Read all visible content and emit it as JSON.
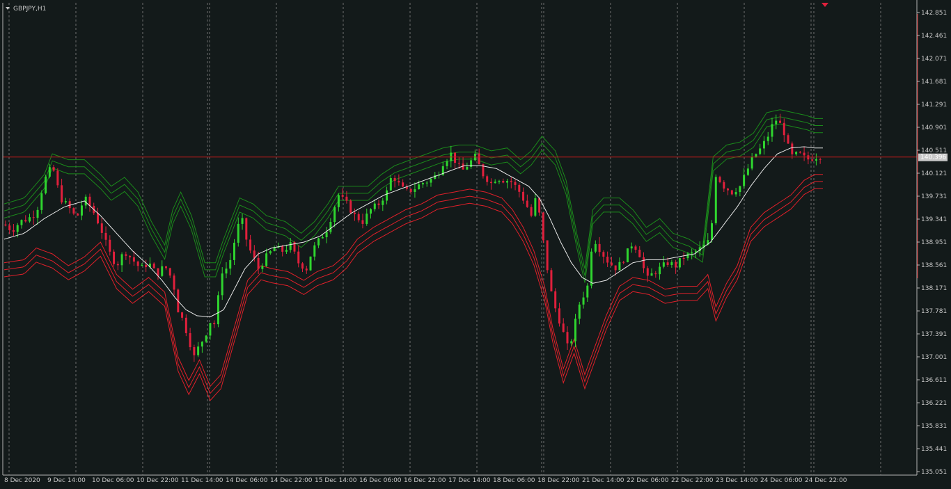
{
  "window": {
    "symbol_label": "GBPJPY,H1"
  },
  "colors": {
    "background": "#131a1a",
    "grid": "#8a8a8a",
    "axis": "#b4b4b4",
    "bull_candle": "#2fd52f",
    "bear_candle": "#e0203c",
    "ma_line": "#e8e8e8",
    "upper_band": "#1b8a1b",
    "lower_band": "#e0202a",
    "current_price_line": "#c41a1a",
    "price_tag_bg": "#c8c8c8",
    "price_tag_fg": "#ffffff"
  },
  "chart_data": {
    "type": "candlestick",
    "y_axis": {
      "min": 135.031,
      "max": 142.851,
      "tick_labels": [
        "142.851",
        "142.461",
        "142.071",
        "141.681",
        "141.291",
        "140.901",
        "140.511",
        "140.121",
        "139.731",
        "139.341",
        "138.951",
        "138.561",
        "138.171",
        "137.781",
        "137.391",
        "137.001",
        "136.611",
        "136.221",
        "135.831",
        "135.441",
        "135.051"
      ]
    },
    "x_axis": {
      "tick_labels": [
        "8 Dec 2020",
        "9 Dec 14:00",
        "10 Dec 06:00",
        "10 Dec 22:00",
        "11 Dec 14:00",
        "14 Dec 06:00",
        "14 Dec 22:00",
        "15 Dec 14:00",
        "16 Dec 06:00",
        "16 Dec 22:00",
        "17 Dec 14:00",
        "18 Dec 06:00",
        "18 Dec 22:00",
        "21 Dec 14:00",
        "22 Dec 06:00",
        "22 Dec 22:00",
        "23 Dec 14:00",
        "24 Dec 06:00",
        "24 Dec 22:00"
      ]
    },
    "current_price": 140.396,
    "current_price_label": "140.396",
    "grid": true,
    "series": {
      "close_path": [
        [
          0,
          139.25
        ],
        [
          6,
          139.15
        ],
        [
          12,
          139.3
        ],
        [
          18,
          139.35
        ],
        [
          24,
          139.45
        ],
        [
          30,
          140.0
        ],
        [
          36,
          140.25
        ],
        [
          42,
          139.7
        ],
        [
          48,
          139.55
        ],
        [
          54,
          139.35
        ],
        [
          60,
          139.7
        ],
        [
          66,
          139.5
        ],
        [
          72,
          139.2
        ],
        [
          78,
          138.8
        ],
        [
          84,
          138.55
        ],
        [
          90,
          138.8
        ],
        [
          96,
          138.65
        ],
        [
          102,
          138.5
        ],
        [
          108,
          138.6
        ],
        [
          114,
          138.4
        ],
        [
          120,
          138.55
        ],
        [
          126,
          138.3
        ],
        [
          130,
          137.8
        ],
        [
          134,
          137.6
        ],
        [
          138,
          137.3
        ],
        [
          142,
          137.0
        ],
        [
          146,
          137.2
        ],
        [
          150,
          137.35
        ],
        [
          154,
          137.6
        ],
        [
          158,
          137.55
        ],
        [
          162,
          138.45
        ],
        [
          166,
          138.5
        ],
        [
          170,
          138.7
        ],
        [
          174,
          139.2
        ],
        [
          178,
          139.3
        ],
        [
          182,
          138.9
        ],
        [
          186,
          138.7
        ],
        [
          190,
          138.5
        ],
        [
          196,
          138.7
        ],
        [
          202,
          138.85
        ],
        [
          208,
          138.8
        ],
        [
          214,
          138.9
        ],
        [
          220,
          138.6
        ],
        [
          226,
          138.5
        ],
        [
          230,
          138.8
        ],
        [
          236,
          139.0
        ],
        [
          242,
          139.2
        ],
        [
          246,
          139.5
        ],
        [
          250,
          139.75
        ],
        [
          256,
          139.6
        ],
        [
          262,
          139.4
        ],
        [
          268,
          139.3
        ],
        [
          274,
          139.5
        ],
        [
          280,
          139.6
        ],
        [
          286,
          139.8
        ],
        [
          290,
          140.1
        ],
        [
          296,
          139.9
        ],
        [
          300,
          139.8
        ],
        [
          306,
          139.85
        ],
        [
          312,
          139.95
        ],
        [
          318,
          140.0
        ],
        [
          324,
          140.1
        ],
        [
          328,
          140.3
        ],
        [
          334,
          140.45
        ],
        [
          338,
          140.3
        ],
        [
          342,
          140.15
        ],
        [
          348,
          140.3
        ],
        [
          352,
          140.4
        ],
        [
          358,
          140.1
        ],
        [
          364,
          139.95
        ],
        [
          368,
          140.05
        ],
        [
          374,
          140.0
        ],
        [
          378,
          140.0
        ],
        [
          384,
          139.85
        ],
        [
          390,
          139.6
        ],
        [
          394,
          139.4
        ],
        [
          398,
          139.75
        ],
        [
          402,
          139.1
        ],
        [
          406,
          138.5
        ],
        [
          410,
          137.95
        ],
        [
          414,
          137.7
        ],
        [
          418,
          137.4
        ],
        [
          422,
          137.1
        ],
        [
          426,
          137.5
        ],
        [
          430,
          137.9
        ],
        [
          436,
          138.2
        ],
        [
          440,
          139.05
        ],
        [
          446,
          138.8
        ],
        [
          452,
          138.6
        ],
        [
          458,
          138.5
        ],
        [
          464,
          138.7
        ],
        [
          470,
          138.95
        ],
        [
          476,
          138.7
        ],
        [
          480,
          138.3
        ],
        [
          484,
          138.4
        ],
        [
          490,
          138.5
        ],
        [
          496,
          138.6
        ],
        [
          502,
          138.55
        ],
        [
          508,
          138.7
        ],
        [
          514,
          138.75
        ],
        [
          518,
          138.8
        ],
        [
          524,
          138.9
        ],
        [
          528,
          139.0
        ],
        [
          532,
          140.1
        ],
        [
          538,
          139.9
        ],
        [
          544,
          139.8
        ],
        [
          550,
          139.9
        ],
        [
          556,
          140.2
        ],
        [
          560,
          140.4
        ],
        [
          566,
          140.55
        ],
        [
          572,
          140.8
        ],
        [
          576,
          141.05
        ],
        [
          582,
          140.9
        ],
        [
          588,
          140.4
        ],
        [
          594,
          140.45
        ],
        [
          600,
          140.35
        ],
        [
          606,
          140.4
        ],
        [
          612,
          140.42
        ]
      ],
      "ma_path": [
        [
          0,
          139.0
        ],
        [
          15,
          139.1
        ],
        [
          30,
          139.35
        ],
        [
          45,
          139.55
        ],
        [
          60,
          139.65
        ],
        [
          72,
          139.4
        ],
        [
          84,
          139.1
        ],
        [
          96,
          138.8
        ],
        [
          108,
          138.55
        ],
        [
          118,
          138.3
        ],
        [
          128,
          138.0
        ],
        [
          136,
          137.8
        ],
        [
          144,
          137.7
        ],
        [
          154,
          137.68
        ],
        [
          164,
          137.8
        ],
        [
          172,
          138.15
        ],
        [
          180,
          138.5
        ],
        [
          190,
          138.75
        ],
        [
          200,
          138.85
        ],
        [
          212,
          138.9
        ],
        [
          224,
          138.95
        ],
        [
          236,
          139.05
        ],
        [
          248,
          139.25
        ],
        [
          260,
          139.45
        ],
        [
          272,
          139.6
        ],
        [
          284,
          139.75
        ],
        [
          296,
          139.85
        ],
        [
          308,
          139.95
        ],
        [
          320,
          140.05
        ],
        [
          332,
          140.15
        ],
        [
          344,
          140.25
        ],
        [
          356,
          140.25
        ],
        [
          368,
          140.2
        ],
        [
          380,
          140.05
        ],
        [
          392,
          139.9
        ],
        [
          400,
          139.7
        ],
        [
          408,
          139.35
        ],
        [
          416,
          138.95
        ],
        [
          424,
          138.6
        ],
        [
          432,
          138.35
        ],
        [
          440,
          138.25
        ],
        [
          450,
          138.3
        ],
        [
          460,
          138.45
        ],
        [
          470,
          138.6
        ],
        [
          480,
          138.65
        ],
        [
          492,
          138.65
        ],
        [
          504,
          138.7
        ],
        [
          516,
          138.75
        ],
        [
          528,
          138.95
        ],
        [
          538,
          139.25
        ],
        [
          548,
          139.55
        ],
        [
          558,
          139.9
        ],
        [
          568,
          140.2
        ],
        [
          578,
          140.45
        ],
        [
          588,
          140.55
        ],
        [
          598,
          140.57
        ],
        [
          606,
          140.55
        ]
      ],
      "upper_band_path": [
        [
          0,
          139.6
        ],
        [
          15,
          139.7
        ],
        [
          30,
          140.1
        ],
        [
          36,
          140.45
        ],
        [
          48,
          140.35
        ],
        [
          60,
          140.35
        ],
        [
          72,
          140.1
        ],
        [
          80,
          139.9
        ],
        [
          90,
          140.05
        ],
        [
          100,
          139.8
        ],
        [
          110,
          139.3
        ],
        [
          120,
          138.9
        ],
        [
          126,
          139.5
        ],
        [
          132,
          139.8
        ],
        [
          140,
          139.4
        ],
        [
          150,
          138.6
        ],
        [
          158,
          138.6
        ],
        [
          164,
          139.0
        ],
        [
          176,
          139.7
        ],
        [
          186,
          139.6
        ],
        [
          196,
          139.4
        ],
        [
          210,
          139.3
        ],
        [
          222,
          139.1
        ],
        [
          232,
          139.3
        ],
        [
          242,
          139.6
        ],
        [
          250,
          139.9
        ],
        [
          260,
          139.9
        ],
        [
          272,
          139.9
        ],
        [
          282,
          140.1
        ],
        [
          292,
          140.25
        ],
        [
          304,
          140.35
        ],
        [
          316,
          140.45
        ],
        [
          328,
          140.55
        ],
        [
          340,
          140.6
        ],
        [
          352,
          140.6
        ],
        [
          364,
          140.5
        ],
        [
          376,
          140.55
        ],
        [
          386,
          140.35
        ],
        [
          394,
          140.5
        ],
        [
          402,
          140.75
        ],
        [
          412,
          140.5
        ],
        [
          420,
          140.0
        ],
        [
          428,
          139.1
        ],
        [
          434,
          138.5
        ],
        [
          440,
          139.5
        ],
        [
          448,
          139.7
        ],
        [
          460,
          139.7
        ],
        [
          470,
          139.5
        ],
        [
          480,
          139.2
        ],
        [
          490,
          139.35
        ],
        [
          500,
          139.1
        ],
        [
          512,
          139.0
        ],
        [
          522,
          138.85
        ],
        [
          530,
          140.4
        ],
        [
          540,
          140.6
        ],
        [
          550,
          140.65
        ],
        [
          560,
          140.8
        ],
        [
          570,
          141.15
        ],
        [
          580,
          141.2
        ],
        [
          590,
          141.15
        ],
        [
          600,
          141.1
        ],
        [
          606,
          141.05
        ]
      ],
      "lower_band_path": [
        [
          0,
          138.6
        ],
        [
          15,
          138.65
        ],
        [
          24,
          138.85
        ],
        [
          36,
          138.75
        ],
        [
          48,
          138.55
        ],
        [
          60,
          138.7
        ],
        [
          72,
          138.95
        ],
        [
          84,
          138.4
        ],
        [
          96,
          138.15
        ],
        [
          108,
          138.35
        ],
        [
          120,
          138.1
        ],
        [
          130,
          137.0
        ],
        [
          138,
          136.6
        ],
        [
          146,
          136.95
        ],
        [
          154,
          136.5
        ],
        [
          162,
          136.7
        ],
        [
          172,
          137.5
        ],
        [
          182,
          138.3
        ],
        [
          192,
          138.55
        ],
        [
          200,
          138.5
        ],
        [
          212,
          138.45
        ],
        [
          224,
          138.3
        ],
        [
          234,
          138.45
        ],
        [
          246,
          138.55
        ],
        [
          256,
          138.75
        ],
        [
          264,
          139.0
        ],
        [
          276,
          139.2
        ],
        [
          288,
          139.35
        ],
        [
          300,
          139.5
        ],
        [
          312,
          139.6
        ],
        [
          324,
          139.75
        ],
        [
          336,
          139.8
        ],
        [
          348,
          139.85
        ],
        [
          360,
          139.8
        ],
        [
          372,
          139.7
        ],
        [
          380,
          139.5
        ],
        [
          388,
          139.2
        ],
        [
          396,
          138.8
        ],
        [
          404,
          138.2
        ],
        [
          410,
          137.5
        ],
        [
          418,
          136.8
        ],
        [
          426,
          137.3
        ],
        [
          434,
          136.7
        ],
        [
          442,
          137.2
        ],
        [
          450,
          137.7
        ],
        [
          460,
          138.2
        ],
        [
          470,
          138.35
        ],
        [
          482,
          138.3
        ],
        [
          494,
          138.15
        ],
        [
          506,
          138.2
        ],
        [
          518,
          138.2
        ],
        [
          526,
          138.4
        ],
        [
          532,
          137.85
        ],
        [
          540,
          138.25
        ],
        [
          548,
          138.55
        ],
        [
          558,
          139.2
        ],
        [
          568,
          139.45
        ],
        [
          578,
          139.6
        ],
        [
          588,
          139.75
        ],
        [
          598,
          140.0
        ],
        [
          606,
          140.1
        ]
      ]
    }
  }
}
